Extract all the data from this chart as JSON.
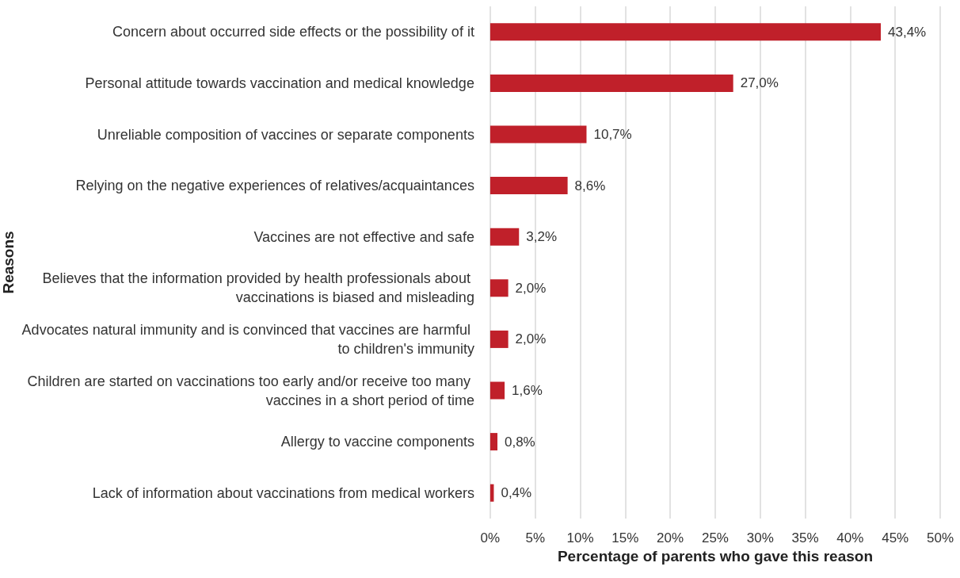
{
  "chart_data": {
    "type": "bar",
    "orientation": "horizontal",
    "xlabel": "Percentage of parents who gave this reason",
    "ylabel": "Reasons",
    "categories": [
      "Concern about occurred side effects or the possibility of it",
      "Personal attitude towards vaccination and medical knowledge",
      "Unreliable composition of vaccines or separate components",
      "Relying on the negative experiences of relatives/acquaintances",
      "Vaccines are not effective and safe",
      "Believes that the information provided by health professionals about vaccinations is biased and misleading",
      "Advocates natural immunity and is convinced that vaccines are harmful to children's immunity",
      "Children are started on vaccinations too early and/or receive too many vaccines in a short period of time",
      "Allergy to vaccine components",
      "Lack of information about vaccinations from medical workers"
    ],
    "values": [
      43.4,
      27.0,
      10.7,
      8.6,
      3.2,
      2.0,
      2.0,
      1.6,
      0.8,
      0.4
    ],
    "value_labels": [
      "43,4%",
      "27,0%",
      "10,7%",
      "8,6%",
      "3,2%",
      "2,0%",
      "2,0%",
      "1,6%",
      "0,8%",
      "0,4%"
    ],
    "color": "#c0202a",
    "xlim": [
      0,
      50
    ],
    "xticks": [
      {
        "value": 0,
        "label": "0%"
      },
      {
        "value": 5,
        "label": "5%"
      },
      {
        "value": 10,
        "label": "10%"
      },
      {
        "value": 15,
        "label": "15%"
      },
      {
        "value": 20,
        "label": "20%"
      },
      {
        "value": 25,
        "label": "25%"
      },
      {
        "value": 30,
        "label": "30%"
      },
      {
        "value": 35,
        "label": "35%"
      },
      {
        "value": 40,
        "label": "40%"
      },
      {
        "value": 45,
        "label": "45%"
      },
      {
        "value": 50,
        "label": "50%"
      }
    ],
    "grid": "x"
  }
}
